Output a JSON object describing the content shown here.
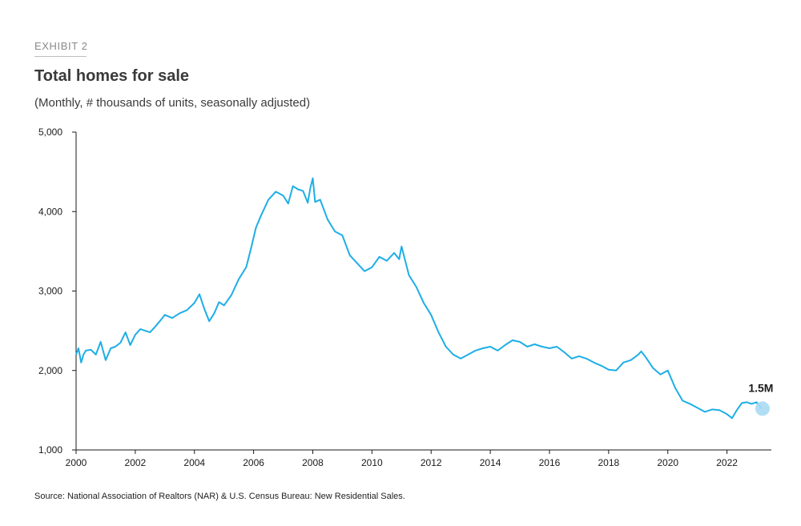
{
  "header": {
    "exhibit": "EXHIBIT 2",
    "title": "Total homes for sale",
    "subtitle": "(Monthly, # thousands of units, seasonally adjusted)"
  },
  "footer": {
    "source": "Source: National Association of Realtors (NAR) & U.S. Census Bureau: New Residential Sales."
  },
  "colors": {
    "line": "#1eaee6",
    "marker": "#a9daf3",
    "axis": "#1a1a1a"
  },
  "chart_data": {
    "type": "line",
    "title": "Total homes for sale",
    "subtitle": "(Monthly, # thousands of units, seasonally adjusted)",
    "xlabel": "",
    "ylabel": "",
    "xlim": [
      2000,
      2023.5
    ],
    "ylim": [
      1000,
      5000
    ],
    "y_ticks": [
      1000,
      2000,
      3000,
      4000,
      5000
    ],
    "y_tick_labels": [
      "1,000",
      "2,000",
      "3,000",
      "4,000",
      "5,000"
    ],
    "x_ticks": [
      2000,
      2002,
      2004,
      2006,
      2008,
      2010,
      2012,
      2014,
      2016,
      2018,
      2020,
      2022
    ],
    "x_tick_labels": [
      "2000",
      "2002",
      "2004",
      "2006",
      "2008",
      "2010",
      "2012",
      "2014",
      "2016",
      "2018",
      "2020",
      "2022"
    ],
    "grid": false,
    "annotation": {
      "label": "1.5M",
      "x": 2023.2,
      "y": 1520
    },
    "series": [
      {
        "x": [
          2000.0,
          2000.08,
          2000.17,
          2000.25,
          2000.33,
          2000.5,
          2000.67,
          2000.83,
          2001.0,
          2001.17,
          2001.33,
          2001.5,
          2001.67,
          2001.83,
          2002.0,
          2002.17,
          2002.33,
          2002.5,
          2002.67,
          2002.83,
          2003.0,
          2003.25,
          2003.5,
          2003.75,
          2004.0,
          2004.17,
          2004.33,
          2004.5,
          2004.67,
          2004.83,
          2005.0,
          2005.25,
          2005.5,
          2005.75,
          2005.92,
          2006.08,
          2006.25,
          2006.5,
          2006.75,
          2007.0,
          2007.17,
          2007.33,
          2007.5,
          2007.67,
          2007.83,
          2007.92,
          2008.0,
          2008.08,
          2008.25,
          2008.5,
          2008.75,
          2009.0,
          2009.25,
          2009.5,
          2009.75,
          2010.0,
          2010.25,
          2010.5,
          2010.75,
          2010.92,
          2011.0,
          2011.25,
          2011.5,
          2011.75,
          2012.0,
          2012.25,
          2012.5,
          2012.75,
          2013.0,
          2013.25,
          2013.5,
          2013.75,
          2014.0,
          2014.25,
          2014.5,
          2014.75,
          2015.0,
          2015.25,
          2015.5,
          2015.75,
          2016.0,
          2016.25,
          2016.5,
          2016.75,
          2017.0,
          2017.25,
          2017.5,
          2017.75,
          2018.0,
          2018.25,
          2018.5,
          2018.75,
          2019.0,
          2019.1,
          2019.25,
          2019.5,
          2019.75,
          2020.0,
          2020.25,
          2020.5,
          2020.75,
          2021.0,
          2021.25,
          2021.5,
          2021.75,
          2022.0,
          2022.17,
          2022.33,
          2022.5,
          2022.67,
          2022.83,
          2023.0,
          2023.17
        ],
        "y": [
          2200,
          2280,
          2100,
          2200,
          2250,
          2260,
          2200,
          2360,
          2130,
          2280,
          2300,
          2350,
          2480,
          2320,
          2450,
          2520,
          2500,
          2480,
          2550,
          2620,
          2700,
          2660,
          2720,
          2760,
          2850,
          2960,
          2780,
          2620,
          2720,
          2860,
          2820,
          2950,
          3150,
          3300,
          3550,
          3800,
          3950,
          4150,
          4250,
          4200,
          4100,
          4320,
          4280,
          4260,
          4110,
          4300,
          4420,
          4120,
          4150,
          3900,
          3750,
          3700,
          3450,
          3350,
          3250,
          3300,
          3430,
          3380,
          3480,
          3400,
          3560,
          3200,
          3050,
          2850,
          2700,
          2480,
          2300,
          2200,
          2150,
          2200,
          2250,
          2280,
          2300,
          2250,
          2320,
          2380,
          2360,
          2300,
          2330,
          2300,
          2280,
          2300,
          2230,
          2150,
          2180,
          2150,
          2100,
          2060,
          2010,
          2000,
          2100,
          2130,
          2200,
          2240,
          2170,
          2030,
          1950,
          2000,
          1780,
          1620,
          1580,
          1530,
          1480,
          1510,
          1500,
          1450,
          1400,
          1500,
          1590,
          1600,
          1580,
          1600,
          1520
        ]
      }
    ]
  }
}
